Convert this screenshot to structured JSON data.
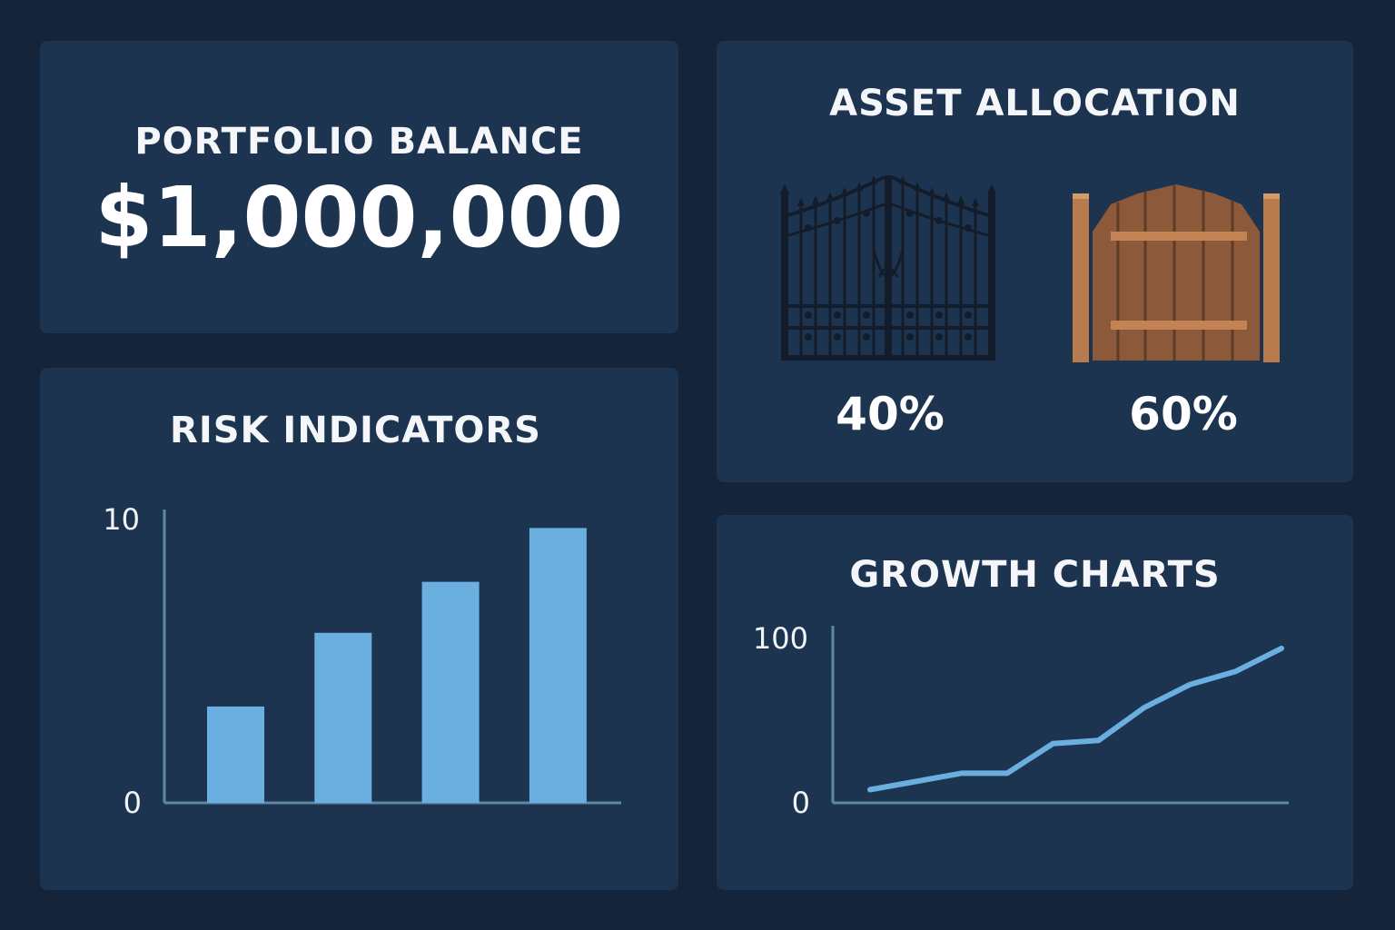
{
  "portfolio": {
    "title": "PORTFOLIO BALANCE",
    "amount": "$1,000,000"
  },
  "allocation": {
    "title": "ASSET ALLOCATION",
    "items": [
      {
        "icon": "iron-gate-icon",
        "percent": "40%",
        "color": "#131c2a"
      },
      {
        "icon": "wooden-gate-icon",
        "percent": "60%",
        "color": "#8c5a3b"
      }
    ]
  },
  "risk": {
    "title": "RISK INDICATORS"
  },
  "growth": {
    "title": "GROWTH CHARTS"
  },
  "colors": {
    "background": "#13243b",
    "card": "#1d3450",
    "accent": "#6aafe0",
    "axis": "#5f87a8"
  },
  "chart_data": [
    {
      "type": "bar",
      "values": [
        3.4,
        6.0,
        7.8,
        9.7
      ],
      "ylim": [
        0,
        10
      ],
      "yticks": [
        "0",
        "10"
      ],
      "grid": false
    },
    {
      "type": "line",
      "values": [
        8,
        13,
        18,
        18,
        36,
        38,
        58,
        72,
        80,
        94
      ],
      "ylim": [
        0,
        100
      ],
      "yticks": [
        "0",
        "100"
      ],
      "grid": false
    }
  ]
}
